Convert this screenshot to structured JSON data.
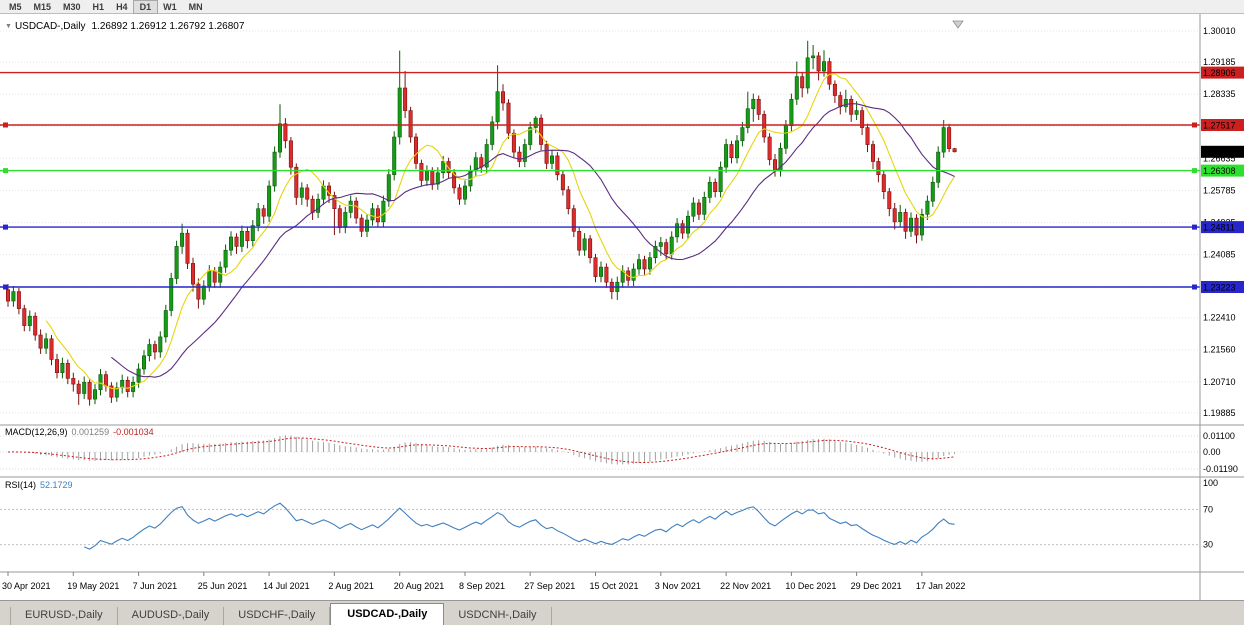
{
  "toolbar": {
    "timeframes": [
      "M5",
      "M15",
      "M30",
      "H1",
      "H4",
      "D1",
      "W1",
      "MN"
    ],
    "active": "D1"
  },
  "chart_data": {
    "type": "candlestick",
    "symbol": "USDCAD",
    "timeframe": "Daily",
    "caret": "▼",
    "title": "USDCAD-,Daily",
    "ohlc_text": "1.26892 1.26912 1.26792 1.26807",
    "ylim": [
      1.19835,
      1.3001
    ],
    "price_ticks": [
      "1.30010",
      "1.29185",
      "1.28335",
      "1.27485",
      "1.26635",
      "1.25785",
      "1.24935",
      "1.24085",
      "1.23235",
      "1.22410",
      "1.21560",
      "1.20710",
      "1.19885"
    ],
    "current_price": {
      "label": "1.26807",
      "box_color": "#000000",
      "text_color": "#ffffff"
    },
    "hlines": [
      {
        "price": 1.28906,
        "label": "1.28906",
        "color": "#cc2020",
        "text_color": "#ffffff",
        "handles": false
      },
      {
        "price": 1.27517,
        "label": "1.27517",
        "color": "#cc2020",
        "text_color": "#ffffff",
        "handles": true
      },
      {
        "price": 1.26308,
        "label": "1.26308",
        "color": "#2ee02e",
        "text_color": "#000000",
        "handles": true
      },
      {
        "price": 1.24811,
        "label": "1.24811",
        "color": "#2626cc",
        "text_color": "#ffffff",
        "handles": true
      },
      {
        "price": 1.23223,
        "label": "1.23223",
        "color": "#2626cc",
        "text_color": "#ffffff",
        "handles": true
      }
    ],
    "ma": [
      {
        "name": "ma-fast-yellow",
        "period": 8,
        "color": "#e6d50f"
      },
      {
        "name": "ma-slow-purple",
        "period": 20,
        "color": "#5a2d82"
      }
    ],
    "colors": {
      "up": "#169b16",
      "down": "#dd2c2c",
      "up_edge": "#0a5a0a",
      "down_edge": "#7a1010",
      "grid": "#e4e4e4"
    },
    "date_labels": [
      {
        "i": 0,
        "text": "30 Apr 2021"
      },
      {
        "i": 12,
        "text": "19 May 2021"
      },
      {
        "i": 24,
        "text": "7 Jun 2021"
      },
      {
        "i": 36,
        "text": "25 Jun 2021"
      },
      {
        "i": 48,
        "text": "14 Jul 2021"
      },
      {
        "i": 60,
        "text": "2 Aug 2021"
      },
      {
        "i": 72,
        "text": "20 Aug 2021"
      },
      {
        "i": 84,
        "text": "8 Sep 2021"
      },
      {
        "i": 96,
        "text": "27 Sep 2021"
      },
      {
        "i": 108,
        "text": "15 Oct 2021"
      },
      {
        "i": 120,
        "text": "3 Nov 2021"
      },
      {
        "i": 132,
        "text": "22 Nov 2021"
      },
      {
        "i": 144,
        "text": "10 Dec 2021"
      },
      {
        "i": 156,
        "text": "29 Dec 2021"
      },
      {
        "i": 168,
        "text": "17 Jan 2022"
      }
    ],
    "candles": [
      [
        1.2315,
        1.233,
        1.227,
        1.2285
      ],
      [
        1.2285,
        1.2325,
        1.227,
        1.231
      ],
      [
        1.231,
        1.232,
        1.225,
        1.2265
      ],
      [
        1.2265,
        1.2275,
        1.2205,
        1.222
      ],
      [
        1.222,
        1.226,
        1.2205,
        1.2245
      ],
      [
        1.2245,
        1.2255,
        1.218,
        1.2195
      ],
      [
        1.2195,
        1.221,
        1.2145,
        1.216
      ],
      [
        1.216,
        1.22,
        1.2145,
        1.2185
      ],
      [
        1.2185,
        1.2195,
        1.2115,
        1.213
      ],
      [
        1.213,
        1.2145,
        1.208,
        1.2095
      ],
      [
        1.2095,
        1.2135,
        1.208,
        1.212
      ],
      [
        1.212,
        1.213,
        1.2065,
        1.208
      ],
      [
        1.208,
        1.2095,
        1.2045,
        1.2065
      ],
      [
        1.2065,
        1.2075,
        1.201,
        1.204
      ],
      [
        1.204,
        1.2085,
        1.2025,
        1.207
      ],
      [
        1.207,
        1.208,
        1.2008,
        1.2025
      ],
      [
        1.2025,
        1.2065,
        1.2012,
        1.205
      ],
      [
        1.205,
        1.2105,
        1.2035,
        1.209
      ],
      [
        1.209,
        1.21,
        1.2045,
        1.206
      ],
      [
        1.206,
        1.207,
        1.2015,
        1.203
      ],
      [
        1.203,
        1.207,
        1.2018,
        1.2055
      ],
      [
        1.2055,
        1.209,
        1.204,
        1.2075
      ],
      [
        1.2075,
        1.2085,
        1.203,
        1.2045
      ],
      [
        1.2045,
        1.2085,
        1.203,
        1.207
      ],
      [
        1.207,
        1.212,
        1.2055,
        1.2105
      ],
      [
        1.2105,
        1.2155,
        1.209,
        1.214
      ],
      [
        1.214,
        1.2185,
        1.2125,
        1.217
      ],
      [
        1.217,
        1.218,
        1.213,
        1.215
      ],
      [
        1.215,
        1.2205,
        1.2135,
        1.219
      ],
      [
        1.219,
        1.2275,
        1.2175,
        1.226
      ],
      [
        1.226,
        1.236,
        1.2245,
        1.2345
      ],
      [
        1.2345,
        1.2445,
        1.233,
        1.243
      ],
      [
        1.243,
        1.249,
        1.241,
        1.2465
      ],
      [
        1.2465,
        1.2475,
        1.237,
        1.2385
      ],
      [
        1.2385,
        1.24,
        1.231,
        1.233
      ],
      [
        1.233,
        1.2345,
        1.2265,
        1.229
      ],
      [
        1.229,
        1.234,
        1.2275,
        1.2325
      ],
      [
        1.2325,
        1.238,
        1.231,
        1.2365
      ],
      [
        1.2365,
        1.2375,
        1.232,
        1.2335
      ],
      [
        1.2335,
        1.239,
        1.232,
        1.2375
      ],
      [
        1.2375,
        1.2435,
        1.236,
        1.242
      ],
      [
        1.242,
        1.247,
        1.2405,
        1.2455
      ],
      [
        1.2455,
        1.2465,
        1.241,
        1.243
      ],
      [
        1.243,
        1.2485,
        1.2415,
        1.247
      ],
      [
        1.247,
        1.248,
        1.2425,
        1.2445
      ],
      [
        1.2445,
        1.25,
        1.243,
        1.2485
      ],
      [
        1.2485,
        1.2545,
        1.247,
        1.253
      ],
      [
        1.253,
        1.254,
        1.249,
        1.251
      ],
      [
        1.251,
        1.2605,
        1.2495,
        1.259
      ],
      [
        1.259,
        1.2695,
        1.2575,
        1.268
      ],
      [
        1.268,
        1.2807,
        1.2665,
        1.2755
      ],
      [
        1.2755,
        1.277,
        1.269,
        1.271
      ],
      [
        1.271,
        1.272,
        1.262,
        1.264
      ],
      [
        1.264,
        1.265,
        1.254,
        1.256
      ],
      [
        1.256,
        1.26,
        1.254,
        1.2585
      ],
      [
        1.2585,
        1.2595,
        1.2535,
        1.2555
      ],
      [
        1.2555,
        1.2565,
        1.25,
        1.252
      ],
      [
        1.252,
        1.257,
        1.2505,
        1.2555
      ],
      [
        1.2555,
        1.2605,
        1.254,
        1.259
      ],
      [
        1.259,
        1.26,
        1.2545,
        1.2565
      ],
      [
        1.2565,
        1.2575,
        1.246,
        1.253
      ],
      [
        1.253,
        1.254,
        1.2465,
        1.248
      ],
      [
        1.248,
        1.2535,
        1.2465,
        1.252
      ],
      [
        1.252,
        1.2565,
        1.2505,
        1.255
      ],
      [
        1.255,
        1.256,
        1.249,
        1.2505
      ],
      [
        1.2505,
        1.2515,
        1.2455,
        1.247
      ],
      [
        1.247,
        1.2515,
        1.2455,
        1.25
      ],
      [
        1.25,
        1.2545,
        1.2485,
        1.253
      ],
      [
        1.253,
        1.254,
        1.248,
        1.2495
      ],
      [
        1.2495,
        1.2565,
        1.248,
        1.255
      ],
      [
        1.255,
        1.2635,
        1.2535,
        1.262
      ],
      [
        1.262,
        1.2735,
        1.2605,
        1.272
      ],
      [
        1.272,
        1.2949,
        1.27,
        1.285
      ],
      [
        1.285,
        1.2895,
        1.277,
        1.279
      ],
      [
        1.279,
        1.28,
        1.2705,
        1.272
      ],
      [
        1.272,
        1.273,
        1.2635,
        1.265
      ],
      [
        1.265,
        1.266,
        1.259,
        1.2605
      ],
      [
        1.2605,
        1.2645,
        1.259,
        1.263
      ],
      [
        1.263,
        1.264,
        1.258,
        1.2595
      ],
      [
        1.2595,
        1.264,
        1.258,
        1.2625
      ],
      [
        1.2625,
        1.267,
        1.261,
        1.2655
      ],
      [
        1.2655,
        1.2665,
        1.261,
        1.2625
      ],
      [
        1.2625,
        1.2635,
        1.257,
        1.2585
      ],
      [
        1.2585,
        1.2595,
        1.254,
        1.2555
      ],
      [
        1.2555,
        1.2605,
        1.254,
        1.259
      ],
      [
        1.259,
        1.2645,
        1.2575,
        1.263
      ],
      [
        1.263,
        1.268,
        1.2615,
        1.2665
      ],
      [
        1.2665,
        1.2675,
        1.2625,
        1.264
      ],
      [
        1.264,
        1.2715,
        1.2625,
        1.27
      ],
      [
        1.27,
        1.2775,
        1.2685,
        1.276
      ],
      [
        1.276,
        1.291,
        1.274,
        1.284
      ],
      [
        1.284,
        1.286,
        1.279,
        1.281
      ],
      [
        1.281,
        1.282,
        1.2715,
        1.273
      ],
      [
        1.273,
        1.274,
        1.2665,
        1.268
      ],
      [
        1.268,
        1.2695,
        1.264,
        1.2655
      ],
      [
        1.2655,
        1.2715,
        1.264,
        1.27
      ],
      [
        1.27,
        1.276,
        1.2685,
        1.2745
      ],
      [
        1.2745,
        1.2775,
        1.273,
        1.277
      ],
      [
        1.277,
        1.278,
        1.2685,
        1.27
      ],
      [
        1.27,
        1.271,
        1.2635,
        1.265
      ],
      [
        1.265,
        1.2685,
        1.2635,
        1.267
      ],
      [
        1.267,
        1.268,
        1.2605,
        1.262
      ],
      [
        1.262,
        1.263,
        1.2565,
        1.258
      ],
      [
        1.258,
        1.259,
        1.2515,
        1.253
      ],
      [
        1.253,
        1.254,
        1.2455,
        1.247
      ],
      [
        1.247,
        1.248,
        1.2405,
        1.242
      ],
      [
        1.242,
        1.2465,
        1.2405,
        1.245
      ],
      [
        1.245,
        1.246,
        1.2385,
        1.24
      ],
      [
        1.24,
        1.241,
        1.2335,
        1.235
      ],
      [
        1.235,
        1.239,
        1.2335,
        1.2375
      ],
      [
        1.2375,
        1.2385,
        1.232,
        1.2335
      ],
      [
        1.2335,
        1.2345,
        1.229,
        1.231
      ],
      [
        1.231,
        1.235,
        1.2288,
        1.2335
      ],
      [
        1.2335,
        1.238,
        1.232,
        1.2365
      ],
      [
        1.2365,
        1.2375,
        1.2325,
        1.234
      ],
      [
        1.234,
        1.2385,
        1.2325,
        1.237
      ],
      [
        1.237,
        1.241,
        1.2355,
        1.2395
      ],
      [
        1.2395,
        1.2405,
        1.2355,
        1.237
      ],
      [
        1.237,
        1.2415,
        1.2355,
        1.24
      ],
      [
        1.24,
        1.2445,
        1.2385,
        1.243
      ],
      [
        1.243,
        1.2455,
        1.2405,
        1.244
      ],
      [
        1.244,
        1.245,
        1.2395,
        1.241
      ],
      [
        1.241,
        1.247,
        1.2395,
        1.2455
      ],
      [
        1.2455,
        1.2505,
        1.244,
        1.249
      ],
      [
        1.249,
        1.25,
        1.245,
        1.2465
      ],
      [
        1.2465,
        1.2525,
        1.245,
        1.251
      ],
      [
        1.251,
        1.256,
        1.2495,
        1.2545
      ],
      [
        1.2545,
        1.2555,
        1.25,
        1.2515
      ],
      [
        1.2515,
        1.2575,
        1.25,
        1.256
      ],
      [
        1.256,
        1.2615,
        1.2545,
        1.26
      ],
      [
        1.26,
        1.261,
        1.256,
        1.2575
      ],
      [
        1.2575,
        1.2655,
        1.256,
        1.264
      ],
      [
        1.264,
        1.2715,
        1.2625,
        1.27
      ],
      [
        1.27,
        1.271,
        1.265,
        1.2665
      ],
      [
        1.2665,
        1.2725,
        1.265,
        1.271
      ],
      [
        1.271,
        1.276,
        1.2695,
        1.2745
      ],
      [
        1.2745,
        1.284,
        1.273,
        1.2795
      ],
      [
        1.2795,
        1.2835,
        1.276,
        1.282
      ],
      [
        1.282,
        1.283,
        1.2765,
        1.278
      ],
      [
        1.278,
        1.279,
        1.2705,
        1.272
      ],
      [
        1.272,
        1.273,
        1.2645,
        1.266
      ],
      [
        1.266,
        1.2675,
        1.2615,
        1.263
      ],
      [
        1.263,
        1.2705,
        1.2615,
        1.269
      ],
      [
        1.269,
        1.2765,
        1.2675,
        1.275
      ],
      [
        1.275,
        1.2835,
        1.2735,
        1.282
      ],
      [
        1.282,
        1.292,
        1.2805,
        1.288
      ],
      [
        1.288,
        1.289,
        1.2825,
        1.285
      ],
      [
        1.285,
        1.2975,
        1.2835,
        1.293
      ],
      [
        1.293,
        1.2964,
        1.29,
        1.2935
      ],
      [
        1.2935,
        1.2945,
        1.287,
        1.2895
      ],
      [
        1.2895,
        1.295,
        1.288,
        1.292
      ],
      [
        1.292,
        1.293,
        1.2845,
        1.286
      ],
      [
        1.286,
        1.287,
        1.281,
        1.283
      ],
      [
        1.283,
        1.284,
        1.278,
        1.28
      ],
      [
        1.28,
        1.2845,
        1.2785,
        1.282
      ],
      [
        1.282,
        1.283,
        1.276,
        1.278
      ],
      [
        1.278,
        1.2815,
        1.2765,
        1.279
      ],
      [
        1.279,
        1.28,
        1.2725,
        1.2745
      ],
      [
        1.2745,
        1.2755,
        1.268,
        1.27
      ],
      [
        1.27,
        1.271,
        1.2635,
        1.2655
      ],
      [
        1.2655,
        1.2665,
        1.26,
        1.262
      ],
      [
        1.262,
        1.263,
        1.2555,
        1.2575
      ],
      [
        1.2575,
        1.2585,
        1.251,
        1.253
      ],
      [
        1.253,
        1.2545,
        1.2475,
        1.2495
      ],
      [
        1.2495,
        1.254,
        1.248,
        1.252
      ],
      [
        1.252,
        1.253,
        1.245,
        1.247
      ],
      [
        1.247,
        1.252,
        1.2455,
        1.2505
      ],
      [
        1.2505,
        1.2515,
        1.2438,
        1.246
      ],
      [
        1.246,
        1.253,
        1.2445,
        1.2515
      ],
      [
        1.2515,
        1.2565,
        1.25,
        1.255
      ],
      [
        1.255,
        1.2615,
        1.2535,
        1.26
      ],
      [
        1.26,
        1.2695,
        1.2585,
        1.268
      ],
      [
        1.268,
        1.2765,
        1.2665,
        1.2745
      ],
      [
        1.2745,
        1.2755,
        1.268,
        1.2689
      ],
      [
        1.26892,
        1.26912,
        1.26792,
        1.26807
      ]
    ]
  },
  "macd": {
    "label": "MACD(12,26,9)",
    "value_main": "0.001259",
    "value_signal": "-0.001034",
    "params": {
      "fast": 12,
      "slow": 26,
      "signal": 9
    },
    "axis_ticks": [
      "0.01100",
      "0.00",
      "-0.01190"
    ],
    "colors": {
      "hist": "#a0a0a0",
      "signal": "#cc2222"
    }
  },
  "rsi": {
    "label": "RSI(14)",
    "value": "52.1729",
    "period": 14,
    "axis_ticks": [
      "100",
      "70",
      "30"
    ],
    "levels": [
      70,
      30
    ],
    "color": "#4080c0"
  },
  "tabs": [
    {
      "label": "EURUSD-,Daily",
      "active": false
    },
    {
      "label": "AUDUSD-,Daily",
      "active": false
    },
    {
      "label": "USDCHF-,Daily",
      "active": false
    },
    {
      "label": "USDCAD-,Daily",
      "active": true
    },
    {
      "label": "USDCNH-,Daily",
      "active": false
    }
  ]
}
